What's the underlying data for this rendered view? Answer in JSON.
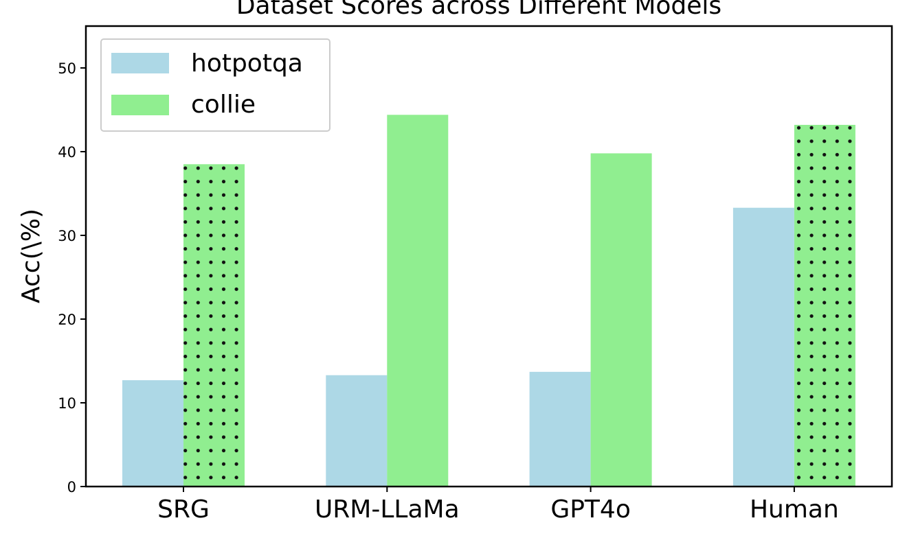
{
  "chart_data": {
    "type": "bar",
    "title": "Dataset Scores across Different Models",
    "xlabel": "",
    "ylabel": "Acc(\\%)",
    "categories": [
      "SRG",
      "URM-LLaMa",
      "GPT4o",
      "Human"
    ],
    "series": [
      {
        "name": "hotpotqa",
        "values": [
          12.7,
          13.3,
          13.7,
          33.3
        ],
        "color": "#add8e6",
        "hatch": [
          false,
          false,
          false,
          false
        ]
      },
      {
        "name": "collie",
        "values": [
          38.5,
          44.4,
          39.8,
          43.2
        ],
        "color": "#90ee90",
        "hatch": [
          true,
          false,
          false,
          true
        ]
      }
    ],
    "ylim": [
      0,
      55
    ],
    "yticks": [
      0,
      10,
      20,
      30,
      40,
      50
    ],
    "legend": "upper-left",
    "grid": false
  }
}
